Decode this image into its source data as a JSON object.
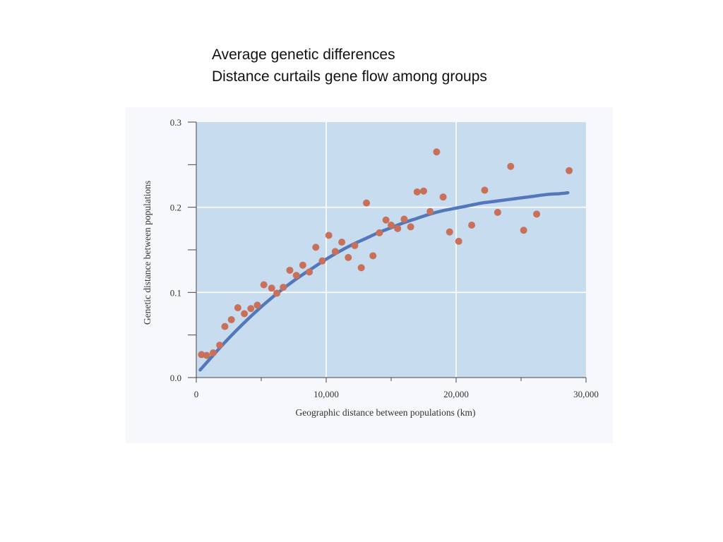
{
  "slide": {
    "title_line1": "Average genetic differences",
    "title_line2": "Distance curtails gene flow among groups"
  },
  "colors": {
    "plot_background": "#c7dcef",
    "grid": "#ffffff",
    "points": "#c8705a",
    "curve": "#5277ba",
    "axis": "#444444"
  },
  "chart_data": {
    "type": "scatter",
    "title": "",
    "xlabel": "Geographic distance between populations (km)",
    "ylabel": "Genetic distance between populations",
    "xlim": [
      0,
      30000
    ],
    "ylim": [
      0,
      0.3
    ],
    "x_ticks": [
      0,
      10000,
      20000,
      30000
    ],
    "x_tick_labels": [
      "0",
      "10,000",
      "20,000",
      "30,000"
    ],
    "x_minor_ticks": [
      5000,
      15000,
      25000
    ],
    "y_ticks": [
      0,
      0.1,
      0.2,
      0.3
    ],
    "y_tick_labels": [
      "0.0",
      "0.1",
      "0.2",
      "0.3"
    ],
    "y_minor_ticks": [
      0.05,
      0.15,
      0.25
    ],
    "grid": true,
    "legend": "none",
    "points": [
      [
        400,
        0.027
      ],
      [
        800,
        0.026
      ],
      [
        1300,
        0.029
      ],
      [
        1800,
        0.038
      ],
      [
        2200,
        0.06
      ],
      [
        2700,
        0.068
      ],
      [
        3200,
        0.082
      ],
      [
        3700,
        0.075
      ],
      [
        4200,
        0.081
      ],
      [
        4700,
        0.085
      ],
      [
        5200,
        0.109
      ],
      [
        5800,
        0.105
      ],
      [
        6200,
        0.099
      ],
      [
        6700,
        0.106
      ],
      [
        7200,
        0.126
      ],
      [
        7700,
        0.12
      ],
      [
        8200,
        0.132
      ],
      [
        8700,
        0.124
      ],
      [
        9200,
        0.153
      ],
      [
        9700,
        0.137
      ],
      [
        10200,
        0.167
      ],
      [
        10700,
        0.148
      ],
      [
        11200,
        0.159
      ],
      [
        11700,
        0.141
      ],
      [
        12200,
        0.155
      ],
      [
        12700,
        0.129
      ],
      [
        13100,
        0.205
      ],
      [
        13600,
        0.143
      ],
      [
        14100,
        0.17
      ],
      [
        14600,
        0.185
      ],
      [
        15000,
        0.179
      ],
      [
        15500,
        0.175
      ],
      [
        16000,
        0.186
      ],
      [
        16500,
        0.177
      ],
      [
        17000,
        0.218
      ],
      [
        17500,
        0.219
      ],
      [
        18000,
        0.195
      ],
      [
        18500,
        0.265
      ],
      [
        19000,
        0.212
      ],
      [
        19500,
        0.171
      ],
      [
        20200,
        0.16
      ],
      [
        21200,
        0.179
      ],
      [
        22200,
        0.22
      ],
      [
        23200,
        0.194
      ],
      [
        24200,
        0.248
      ],
      [
        25200,
        0.173
      ],
      [
        26200,
        0.192
      ],
      [
        28700,
        0.243
      ]
    ],
    "fit_curve": {
      "name": "",
      "x": [
        300,
        1000,
        2000,
        3000,
        4000,
        5000,
        6000,
        7000,
        8000,
        9000,
        10000,
        11000,
        12000,
        13000,
        14000,
        15000,
        16000,
        17000,
        18000,
        19000,
        20000,
        21000,
        22000,
        23000,
        24000,
        25000,
        26000,
        27000,
        28000,
        28600
      ],
      "y": [
        0.009,
        0.021,
        0.038,
        0.054,
        0.069,
        0.083,
        0.096,
        0.108,
        0.119,
        0.129,
        0.139,
        0.148,
        0.156,
        0.163,
        0.17,
        0.176,
        0.182,
        0.187,
        0.192,
        0.196,
        0.199,
        0.202,
        0.205,
        0.207,
        0.209,
        0.211,
        0.213,
        0.215,
        0.216,
        0.217
      ]
    }
  }
}
